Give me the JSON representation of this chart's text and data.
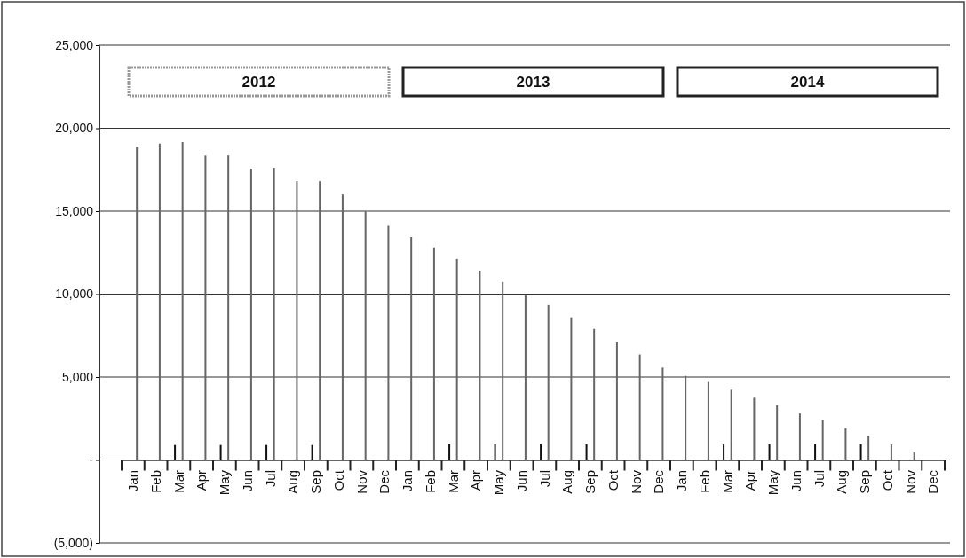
{
  "chart_data": {
    "type": "bar",
    "categories": [
      "Jan",
      "Feb",
      "Mar",
      "Apr",
      "May",
      "Jun",
      "Jul",
      "Aug",
      "Sep",
      "Oct",
      "Nov",
      "Dec",
      "Jan",
      "Feb",
      "Mar",
      "Apr",
      "May",
      "Jun",
      "Jul",
      "Aug",
      "Sep",
      "Oct",
      "Nov",
      "Dec",
      "Jan",
      "Feb",
      "Mar",
      "Apr",
      "May",
      "Jun",
      "Jul",
      "Aug",
      "Sep",
      "Oct",
      "Nov",
      "Dec"
    ],
    "series": [
      {
        "color": "#111111",
        "values": [
          0,
          0,
          900,
          0,
          900,
          0,
          900,
          0,
          900,
          0,
          0,
          0,
          0,
          0,
          950,
          0,
          950,
          0,
          950,
          0,
          950,
          0,
          0,
          0,
          0,
          0,
          950,
          0,
          950,
          0,
          950,
          0,
          950,
          0,
          0,
          0
        ]
      },
      {
        "color": "#666666",
        "values": [
          18850,
          19080,
          19170,
          18350,
          18360,
          17560,
          17620,
          16810,
          16810,
          16010,
          14980,
          14120,
          13450,
          12820,
          12120,
          11410,
          10730,
          9930,
          9340,
          8600,
          7900,
          7090,
          6360,
          5570,
          5070,
          4700,
          4230,
          3750,
          3300,
          2800,
          2410,
          1910,
          1460,
          930,
          450,
          0
        ]
      }
    ],
    "ylim": [
      -5000,
      25000
    ],
    "yticks": [
      {
        "value": -5000,
        "label": "(5,000)"
      },
      {
        "value": 0,
        "label": "-"
      },
      {
        "value": 5000,
        "label": "5,000"
      },
      {
        "value": 10000,
        "label": "10,000"
      },
      {
        "value": 15000,
        "label": "15,000"
      },
      {
        "value": 20000,
        "label": "20,000"
      },
      {
        "value": 25000,
        "label": "25,000"
      }
    ],
    "grid": "y",
    "annotations": [
      "2012",
      "2013",
      "2014"
    ]
  }
}
